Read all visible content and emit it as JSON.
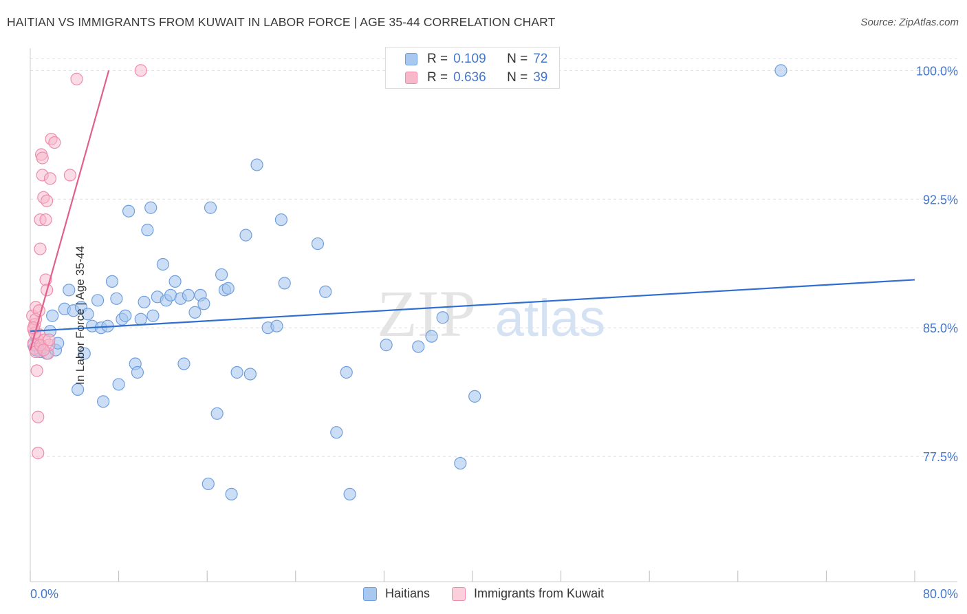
{
  "title": "HAITIAN VS IMMIGRANTS FROM KUWAIT IN LABOR FORCE | AGE 35-44 CORRELATION CHART",
  "source": "Source: ZipAtlas.com",
  "watermark": {
    "zip": "ZIP",
    "atlas": "atlas"
  },
  "legend_top": [
    {
      "r_label": "R =",
      "r_value": "0.109",
      "n_label": "N =",
      "n_value": "72"
    },
    {
      "r_label": "R =",
      "r_value": "0.636",
      "n_label": "N =",
      "n_value": "39"
    }
  ],
  "legend_bottom": [
    {
      "label": "Haitians"
    },
    {
      "label": "Immigrants from Kuwait"
    }
  ],
  "colors": {
    "blue_fill": "#a9c8f0",
    "blue_stroke": "#6f9fde",
    "blue_line": "#2f6fd0",
    "pink_fill": "#f7b8cb",
    "pink_stroke": "#ee8cab",
    "pink_line": "#e0608a",
    "tick_label": "#4477cc",
    "grid": "#dddddd"
  },
  "chart_data": {
    "type": "scatter",
    "title": "HAITIAN VS IMMIGRANTS FROM KUWAIT IN LABOR FORCE | AGE 35-44 CORRELATION CHART",
    "xlabel": "",
    "ylabel": "In Labor Force | Age 35-44",
    "xlim": [
      0,
      80
    ],
    "ylim": [
      70.2,
      101.3
    ],
    "x_tick_labels": [
      "0.0%",
      "80.0%"
    ],
    "y_ticks": [
      77.5,
      85.0,
      92.5,
      100.0
    ],
    "y_tick_labels": [
      "77.5%",
      "85.0%",
      "92.5%",
      "100.0%"
    ],
    "grid": true,
    "legend": "top-center",
    "series": [
      {
        "name": "Haitians",
        "r": 0.109,
        "n": 72,
        "trend": {
          "x": [
            0,
            80
          ],
          "y": [
            84.8,
            87.8
          ]
        },
        "points": [
          [
            0.5,
            83.7
          ],
          [
            0.9,
            83.6
          ],
          [
            1.1,
            83.8
          ],
          [
            1.5,
            83.5
          ],
          [
            1.8,
            84.8
          ],
          [
            2.3,
            83.7
          ],
          [
            2.5,
            84.1
          ],
          [
            3.1,
            86.1
          ],
          [
            3.5,
            87.2
          ],
          [
            3.9,
            86.0
          ],
          [
            4.3,
            81.4
          ],
          [
            4.6,
            86.2
          ],
          [
            4.9,
            83.5
          ],
          [
            5.2,
            85.8
          ],
          [
            5.6,
            85.1
          ],
          [
            6.1,
            86.6
          ],
          [
            6.4,
            85.0
          ],
          [
            6.6,
            80.7
          ],
          [
            7.0,
            85.1
          ],
          [
            7.4,
            87.7
          ],
          [
            7.8,
            86.7
          ],
          [
            8.0,
            81.7
          ],
          [
            8.3,
            85.5
          ],
          [
            8.6,
            85.7
          ],
          [
            8.9,
            91.8
          ],
          [
            9.5,
            82.9
          ],
          [
            9.7,
            82.4
          ],
          [
            10.0,
            85.5
          ],
          [
            10.3,
            86.5
          ],
          [
            10.6,
            90.7
          ],
          [
            10.9,
            92.0
          ],
          [
            11.1,
            85.7
          ],
          [
            11.5,
            86.8
          ],
          [
            12.0,
            88.7
          ],
          [
            12.3,
            86.6
          ],
          [
            12.7,
            86.9
          ],
          [
            13.1,
            87.7
          ],
          [
            13.6,
            86.7
          ],
          [
            13.9,
            82.9
          ],
          [
            14.3,
            86.9
          ],
          [
            14.9,
            85.9
          ],
          [
            15.4,
            86.9
          ],
          [
            15.7,
            86.4
          ],
          [
            16.1,
            75.9
          ],
          [
            16.3,
            92.0
          ],
          [
            16.9,
            80.0
          ],
          [
            17.3,
            88.1
          ],
          [
            17.6,
            87.2
          ],
          [
            17.9,
            87.3
          ],
          [
            18.2,
            75.3
          ],
          [
            18.7,
            82.4
          ],
          [
            19.5,
            90.4
          ],
          [
            19.9,
            82.3
          ],
          [
            20.5,
            94.5
          ],
          [
            21.5,
            85.0
          ],
          [
            22.3,
            85.1
          ],
          [
            22.7,
            91.3
          ],
          [
            23.0,
            87.6
          ],
          [
            26.0,
            89.9
          ],
          [
            26.7,
            87.1
          ],
          [
            27.7,
            78.9
          ],
          [
            28.6,
            82.4
          ],
          [
            28.9,
            75.3
          ],
          [
            32.2,
            84.0
          ],
          [
            35.1,
            83.9
          ],
          [
            36.3,
            84.5
          ],
          [
            37.3,
            85.6
          ],
          [
            38.9,
            77.1
          ],
          [
            40.2,
            81.0
          ],
          [
            67.9,
            100.0
          ],
          [
            0.3,
            84.0
          ],
          [
            2.0,
            85.7
          ]
        ]
      },
      {
        "name": "Immigrants from Kuwait",
        "r": 0.636,
        "n": 39,
        "trend": {
          "x": [
            0,
            7.1
          ],
          "y": [
            83.7,
            100.0
          ]
        },
        "points": [
          [
            0.2,
            85.7
          ],
          [
            0.3,
            84.9
          ],
          [
            0.3,
            84.1
          ],
          [
            0.4,
            85.2
          ],
          [
            0.4,
            83.8
          ],
          [
            0.5,
            85.5
          ],
          [
            0.5,
            86.2
          ],
          [
            0.6,
            84.4
          ],
          [
            0.6,
            82.5
          ],
          [
            0.7,
            79.8
          ],
          [
            0.7,
            77.7
          ],
          [
            0.8,
            86.0
          ],
          [
            0.8,
            84.6
          ],
          [
            0.9,
            89.6
          ],
          [
            0.9,
            91.3
          ],
          [
            1.0,
            83.9
          ],
          [
            1.0,
            95.1
          ],
          [
            1.1,
            94.9
          ],
          [
            1.1,
            93.9
          ],
          [
            1.2,
            92.6
          ],
          [
            1.3,
            84.3
          ],
          [
            1.4,
            91.3
          ],
          [
            1.4,
            87.8
          ],
          [
            1.5,
            87.2
          ],
          [
            1.5,
            92.4
          ],
          [
            1.6,
            83.5
          ],
          [
            1.7,
            84.0
          ],
          [
            1.8,
            93.7
          ],
          [
            1.9,
            96.0
          ],
          [
            2.2,
            95.8
          ],
          [
            0.4,
            84.7
          ],
          [
            0.5,
            83.6
          ],
          [
            0.9,
            84.0
          ],
          [
            1.2,
            83.7
          ],
          [
            1.7,
            84.3
          ],
          [
            3.6,
            93.9
          ],
          [
            4.2,
            99.5
          ],
          [
            10.0,
            100.0
          ],
          [
            0.3,
            85.0
          ]
        ]
      }
    ]
  }
}
